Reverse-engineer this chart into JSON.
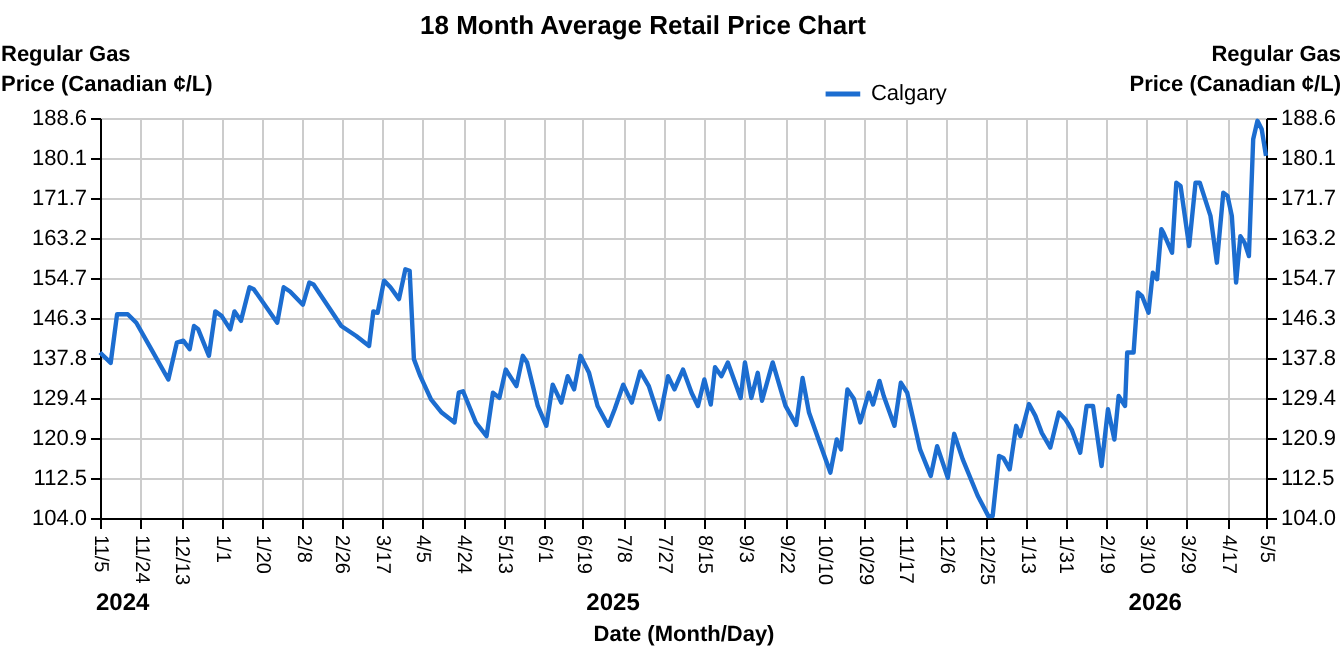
{
  "chart_data": {
    "type": "line",
    "title": "18 Month Average Retail Price Chart",
    "xlabel": "Date (Month/Day)",
    "ylabel": "Regular Gas Price (Canadian ¢/L)",
    "y2label": "Regular Gas Price (Canadian ¢/L)",
    "x": [
      "2024-11-05",
      "2024-11-10",
      "2024-11-13",
      "2024-11-18",
      "2024-11-22",
      "2024-11-29",
      "2024-12-07",
      "2024-12-11",
      "2024-12-14",
      "2024-12-17",
      "2024-12-19",
      "2024-12-21",
      "2024-12-26",
      "2024-12-29",
      "2025-01-01",
      "2025-01-05",
      "2025-01-07",
      "2025-01-10",
      "2025-01-14",
      "2025-01-16",
      "2025-01-27",
      "2025-01-30",
      "2025-02-02",
      "2025-02-08",
      "2025-02-11",
      "2025-02-13",
      "2025-02-26",
      "2025-03-05",
      "2025-03-11",
      "2025-03-13",
      "2025-03-15",
      "2025-03-18",
      "2025-03-21",
      "2025-03-25",
      "2025-03-28",
      "2025-03-30",
      "2025-04-01",
      "2025-04-04",
      "2025-04-09",
      "2025-04-14",
      "2025-04-20",
      "2025-04-22",
      "2025-04-24",
      "2025-04-30",
      "2025-05-05",
      "2025-05-08",
      "2025-05-11",
      "2025-05-14",
      "2025-05-19",
      "2025-05-22",
      "2025-05-24",
      "2025-05-29",
      "2025-06-02",
      "2025-06-05",
      "2025-06-09",
      "2025-06-12",
      "2025-06-15",
      "2025-06-18",
      "2025-06-22",
      "2025-06-26",
      "2025-07-01",
      "2025-07-04",
      "2025-07-08",
      "2025-07-12",
      "2025-07-16",
      "2025-07-20",
      "2025-07-25",
      "2025-07-29",
      "2025-08-01",
      "2025-08-05",
      "2025-08-09",
      "2025-08-12",
      "2025-08-15",
      "2025-08-18",
      "2025-08-20",
      "2025-08-23",
      "2025-08-26",
      "2025-09-01",
      "2025-09-03",
      "2025-09-06",
      "2025-09-09",
      "2025-09-11",
      "2025-09-16",
      "2025-09-22",
      "2025-09-27",
      "2025-09-30",
      "2025-10-03",
      "2025-10-08",
      "2025-10-13",
      "2025-10-16",
      "2025-10-18",
      "2025-10-21",
      "2025-10-24",
      "2025-10-27",
      "2025-10-31",
      "2025-11-02",
      "2025-11-05",
      "2025-11-07",
      "2025-11-12",
      "2025-11-15",
      "2025-11-18",
      "2025-11-24",
      "2025-11-29",
      "2025-12-02",
      "2025-12-07",
      "2025-12-10",
      "2025-12-14",
      "2025-12-21",
      "2025-12-26",
      "2025-12-28",
      "2025-12-31",
      "2026-01-02",
      "2026-01-05",
      "2026-01-08",
      "2026-01-10",
      "2026-01-14",
      "2026-01-17",
      "2026-01-20",
      "2026-01-24",
      "2026-01-28",
      "2026-01-31",
      "2026-02-03",
      "2026-02-07",
      "2026-02-10",
      "2026-02-13",
      "2026-02-17",
      "2026-02-20",
      "2026-02-23",
      "2026-02-25",
      "2026-02-28",
      "2026-03-01",
      "2026-03-04",
      "2026-03-06",
      "2026-03-08",
      "2026-03-11",
      "2026-03-13",
      "2026-03-15",
      "2026-03-17",
      "2026-03-18",
      "2026-03-22",
      "2026-03-24",
      "2026-03-26",
      "2026-03-30",
      "2026-04-02",
      "2026-04-04",
      "2026-04-09",
      "2026-04-12",
      "2026-04-15",
      "2026-04-17",
      "2026-04-19",
      "2026-04-21",
      "2026-04-23",
      "2026-04-25",
      "2026-04-27",
      "2026-04-29",
      "2026-05-01",
      "2026-05-03",
      "2026-05-05"
    ],
    "series": [
      {
        "name": "Calgary",
        "color": "#1c6dd0",
        "values": [
          139.0,
          136.8,
          147.1,
          147.1,
          145.3,
          139.7,
          133.3,
          141.1,
          141.5,
          139.7,
          144.6,
          143.9,
          138.3,
          147.7,
          146.7,
          143.9,
          147.7,
          145.7,
          152.8,
          152.4,
          145.3,
          152.8,
          151.9,
          149.1,
          153.8,
          153.4,
          144.6,
          142.5,
          140.4,
          147.7,
          147.4,
          154.2,
          152.8,
          150.3,
          156.6,
          156.3,
          137.6,
          134.0,
          129.1,
          126.3,
          124.2,
          130.5,
          130.8,
          124.2,
          121.3,
          130.5,
          129.4,
          135.4,
          131.9,
          138.3,
          136.9,
          127.7,
          123.5,
          132.2,
          128.4,
          134.0,
          131.2,
          138.3,
          134.7,
          127.7,
          123.5,
          127.0,
          132.2,
          128.4,
          135.0,
          131.9,
          124.9,
          134.0,
          131.2,
          135.4,
          130.5,
          127.7,
          133.3,
          128.0,
          135.9,
          134.0,
          136.9,
          129.4,
          136.9,
          129.4,
          134.7,
          128.8,
          136.9,
          127.7,
          123.7,
          133.6,
          126.3,
          119.9,
          113.6,
          120.6,
          118.5,
          131.2,
          129.2,
          124.2,
          130.5,
          128.0,
          133.0,
          129.8,
          123.5,
          132.6,
          130.5,
          118.5,
          112.9,
          119.2,
          112.5,
          121.8,
          116.4,
          108.7,
          104.4,
          104.4,
          117.1,
          116.7,
          114.3,
          123.5,
          121.3,
          128.1,
          125.6,
          122.0,
          118.9,
          126.3,
          124.9,
          122.7,
          117.8,
          127.7,
          127.7,
          115.0,
          127.0,
          120.6,
          129.8,
          127.7,
          139.0,
          139.0,
          151.7,
          150.9,
          147.4,
          155.9,
          154.5,
          165.1,
          164.3,
          160.1,
          174.9,
          174.2,
          161.5,
          174.9,
          174.9,
          167.9,
          158.0,
          172.8,
          172.1,
          167.9,
          153.8,
          163.6,
          162.2,
          159.4,
          184.1,
          188.0,
          186.2,
          180.6
        ]
      }
    ],
    "xlim": [
      "2024-11-05",
      "2026-05-05"
    ],
    "xticks": [
      {
        "value": "2024-11-05",
        "label": "11/5"
      },
      {
        "value": "2024-11-24",
        "label": "11/24"
      },
      {
        "value": "2024-12-13",
        "label": "12/13"
      },
      {
        "value": "2025-01-01",
        "label": "1/1"
      },
      {
        "value": "2025-01-20",
        "label": "1/20"
      },
      {
        "value": "2025-02-08",
        "label": "2/8"
      },
      {
        "value": "2025-02-26",
        "label": "2/26"
      },
      {
        "value": "2025-03-17",
        "label": "3/17"
      },
      {
        "value": "2025-04-05",
        "label": "4/5"
      },
      {
        "value": "2025-04-24",
        "label": "4/24"
      },
      {
        "value": "2025-05-13",
        "label": "5/13"
      },
      {
        "value": "2025-06-01",
        "label": "6/1"
      },
      {
        "value": "2025-06-19",
        "label": "6/19"
      },
      {
        "value": "2025-07-08",
        "label": "7/8"
      },
      {
        "value": "2025-07-27",
        "label": "7/27"
      },
      {
        "value": "2025-08-15",
        "label": "8/15"
      },
      {
        "value": "2025-09-03",
        "label": "9/3"
      },
      {
        "value": "2025-09-22",
        "label": "9/22"
      },
      {
        "value": "2025-10-10",
        "label": "10/10"
      },
      {
        "value": "2025-10-29",
        "label": "10/29"
      },
      {
        "value": "2025-11-17",
        "label": "11/17"
      },
      {
        "value": "2025-12-06",
        "label": "12/6"
      },
      {
        "value": "2025-12-25",
        "label": "12/25"
      },
      {
        "value": "2026-01-13",
        "label": "1/13"
      },
      {
        "value": "2026-01-31",
        "label": "1/31"
      },
      {
        "value": "2026-02-19",
        "label": "2/19"
      },
      {
        "value": "2026-03-10",
        "label": "3/10"
      },
      {
        "value": "2026-03-29",
        "label": "3/29"
      },
      {
        "value": "2026-04-17",
        "label": "4/17"
      },
      {
        "value": "2026-05-05",
        "label": "5/5"
      }
    ],
    "ylim": [
      104.0,
      188.6
    ],
    "yticks": [
      {
        "value": 104,
        "label": "104.0"
      },
      112.5,
      120.9,
      129.4,
      137.8,
      146.3,
      154.7,
      163.2,
      171.7,
      180.1,
      188.6
    ],
    "y2lim": [
      104.0,
      188.6
    ],
    "y2ticks": [
      {
        "value": 104,
        "label": "104.0"
      },
      112.5,
      120.9,
      129.4,
      137.8,
      146.3,
      154.7,
      163.2,
      171.7,
      180.1,
      188.6
    ],
    "annotations": [
      "2024",
      "2025",
      "2026"
    ],
    "grid": true,
    "legend": "top"
  }
}
